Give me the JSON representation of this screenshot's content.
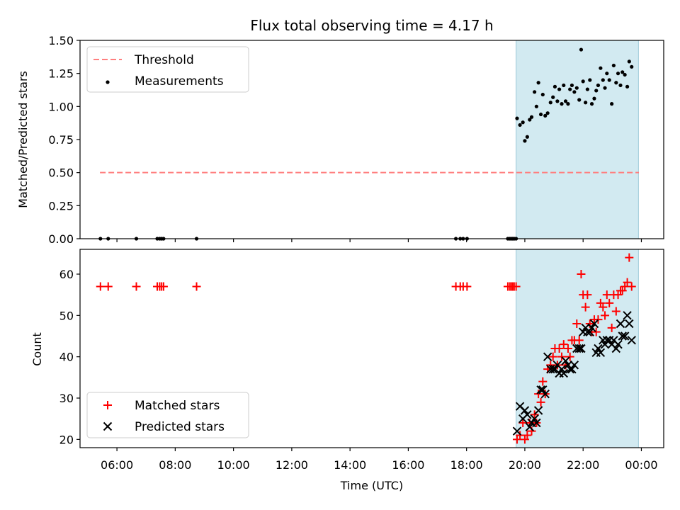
{
  "chart_data": [
    {
      "type": "scatter",
      "title": "Flux total observing time = 4.17 h",
      "xlabel": "",
      "ylabel": "Matched/Predicted stars",
      "ylim": [
        0,
        1.5
      ],
      "yticks": [
        "0.00",
        "0.25",
        "0.50",
        "0.75",
        "1.00",
        "1.25",
        "1.50"
      ],
      "legend_position": "top-left",
      "threshold": {
        "name": "Threshold",
        "value": 0.5,
        "x_range": [
          "05:25",
          "23:55"
        ],
        "color": "#ff7f7f"
      },
      "shaded_interval": {
        "start": "19:42",
        "end": "23:54",
        "color": "#add8e6"
      },
      "series": [
        {
          "name": "Measurements",
          "color": "#000000",
          "points": [
            [
              "05:26",
              0
            ],
            [
              "05:42",
              0
            ],
            [
              "06:40",
              0
            ],
            [
              "07:23",
              0
            ],
            [
              "07:28",
              0
            ],
            [
              "07:32",
              0
            ],
            [
              "07:36",
              0
            ],
            [
              "08:44",
              0
            ],
            [
              "17:38",
              0
            ],
            [
              "17:47",
              0
            ],
            [
              "17:53",
              0
            ],
            [
              "18:01",
              0
            ],
            [
              "19:25",
              0
            ],
            [
              "19:29",
              0
            ],
            [
              "19:32",
              0
            ],
            [
              "19:35",
              0
            ],
            [
              "19:38",
              0
            ],
            [
              "19:42",
              0
            ],
            [
              "19:44",
              0.91
            ],
            [
              "19:50",
              0.86
            ],
            [
              "19:56",
              0.88
            ],
            [
              "20:00",
              0.74
            ],
            [
              "20:05",
              0.77
            ],
            [
              "20:10",
              0.9
            ],
            [
              "20:14",
              0.92
            ],
            [
              "20:20",
              1.11
            ],
            [
              "20:24",
              1.0
            ],
            [
              "20:28",
              1.18
            ],
            [
              "20:33",
              0.94
            ],
            [
              "20:37",
              1.09
            ],
            [
              "20:42",
              0.93
            ],
            [
              "20:47",
              0.95
            ],
            [
              "20:53",
              1.03
            ],
            [
              "20:58",
              1.07
            ],
            [
              "21:02",
              1.15
            ],
            [
              "21:07",
              1.04
            ],
            [
              "21:11",
              1.13
            ],
            [
              "21:16",
              1.02
            ],
            [
              "21:20",
              1.16
            ],
            [
              "21:24",
              1.04
            ],
            [
              "21:29",
              1.02
            ],
            [
              "21:33",
              1.13
            ],
            [
              "21:37",
              1.16
            ],
            [
              "21:42",
              1.11
            ],
            [
              "21:47",
              1.14
            ],
            [
              "21:52",
              1.05
            ],
            [
              "21:56",
              1.43
            ],
            [
              "22:00",
              1.19
            ],
            [
              "22:05",
              1.03
            ],
            [
              "22:09",
              1.13
            ],
            [
              "22:14",
              1.2
            ],
            [
              "22:18",
              1.02
            ],
            [
              "22:23",
              1.06
            ],
            [
              "22:27",
              1.12
            ],
            [
              "22:31",
              1.16
            ],
            [
              "22:36",
              1.29
            ],
            [
              "22:41",
              1.2
            ],
            [
              "22:45",
              1.14
            ],
            [
              "22:49",
              1.25
            ],
            [
              "22:54",
              1.2
            ],
            [
              "22:59",
              1.02
            ],
            [
              "23:03",
              1.31
            ],
            [
              "23:08",
              1.18
            ],
            [
              "23:12",
              1.25
            ],
            [
              "23:17",
              1.16
            ],
            [
              "23:21",
              1.26
            ],
            [
              "23:26",
              1.24
            ],
            [
              "23:31",
              1.15
            ],
            [
              "23:35",
              1.34
            ],
            [
              "23:40",
              1.3
            ]
          ]
        }
      ]
    },
    {
      "type": "scatter",
      "xlabel": "Time (UTC)",
      "ylabel": "Count",
      "ylim": [
        18,
        66
      ],
      "yticks": [
        "20",
        "30",
        "40",
        "50",
        "60"
      ],
      "xticks": [
        "06:00",
        "08:00",
        "10:00",
        "12:00",
        "14:00",
        "16:00",
        "18:00",
        "20:00",
        "22:00",
        "00:00"
      ],
      "xlim": [
        "04:44",
        "00:46"
      ],
      "legend_position": "bottom-left",
      "shaded_interval": {
        "start": "19:42",
        "end": "23:54",
        "color": "#add8e6"
      },
      "series": [
        {
          "name": "Matched stars",
          "marker": "+",
          "color": "#ff0000",
          "points": [
            [
              "05:26",
              57
            ],
            [
              "05:42",
              57
            ],
            [
              "06:40",
              57
            ],
            [
              "07:23",
              57
            ],
            [
              "07:28",
              57
            ],
            [
              "07:32",
              57
            ],
            [
              "07:36",
              57
            ],
            [
              "08:44",
              57
            ],
            [
              "17:38",
              57
            ],
            [
              "17:47",
              57
            ],
            [
              "17:53",
              57
            ],
            [
              "18:01",
              57
            ],
            [
              "19:25",
              57
            ],
            [
              "19:29",
              57
            ],
            [
              "19:32",
              57
            ],
            [
              "19:35",
              57
            ],
            [
              "19:38",
              57
            ],
            [
              "19:42",
              57
            ],
            [
              "19:44",
              20
            ],
            [
              "19:50",
              21
            ],
            [
              "19:56",
              24
            ],
            [
              "20:00",
              20
            ],
            [
              "20:05",
              21
            ],
            [
              "20:10",
              24
            ],
            [
              "20:14",
              22
            ],
            [
              "20:20",
              26
            ],
            [
              "20:24",
              24
            ],
            [
              "20:28",
              31
            ],
            [
              "20:33",
              29
            ],
            [
              "20:37",
              34
            ],
            [
              "20:42",
              31
            ],
            [
              "20:47",
              37
            ],
            [
              "20:53",
              38
            ],
            [
              "20:58",
              40
            ],
            [
              "21:02",
              42
            ],
            [
              "21:07",
              38
            ],
            [
              "21:11",
              42
            ],
            [
              "21:16",
              40
            ],
            [
              "21:20",
              43
            ],
            [
              "21:24",
              38
            ],
            [
              "21:29",
              42
            ],
            [
              "21:33",
              40
            ],
            [
              "21:37",
              44
            ],
            [
              "21:42",
              44
            ],
            [
              "21:47",
              48
            ],
            [
              "21:52",
              44
            ],
            [
              "21:56",
              60
            ],
            [
              "22:00",
              55
            ],
            [
              "22:05",
              52
            ],
            [
              "22:09",
              55
            ],
            [
              "22:14",
              48
            ],
            [
              "22:18",
              46
            ],
            [
              "22:23",
              49
            ],
            [
              "22:27",
              46
            ],
            [
              "22:31",
              49
            ],
            [
              "22:36",
              53
            ],
            [
              "22:41",
              52
            ],
            [
              "22:45",
              50
            ],
            [
              "22:49",
              55
            ],
            [
              "22:54",
              53
            ],
            [
              "22:59",
              47
            ],
            [
              "23:03",
              55
            ],
            [
              "23:08",
              51
            ],
            [
              "23:12",
              55
            ],
            [
              "23:17",
              56
            ],
            [
              "23:21",
              56
            ],
            [
              "23:26",
              57
            ],
            [
              "23:31",
              58
            ],
            [
              "23:35",
              64
            ],
            [
              "23:40",
              57
            ]
          ]
        },
        {
          "name": "Predicted stars",
          "marker": "x",
          "color": "#000000",
          "points": [
            [
              "19:44",
              22
            ],
            [
              "19:50",
              28
            ],
            [
              "19:56",
              25
            ],
            [
              "20:00",
              27
            ],
            [
              "20:05",
              26
            ],
            [
              "20:10",
              23
            ],
            [
              "20:14",
              24
            ],
            [
              "20:20",
              25
            ],
            [
              "20:24",
              24
            ],
            [
              "20:28",
              27
            ],
            [
              "20:33",
              32
            ],
            [
              "20:37",
              32
            ],
            [
              "20:42",
              31
            ],
            [
              "20:47",
              40
            ],
            [
              "20:53",
              37
            ],
            [
              "20:58",
              37
            ],
            [
              "21:02",
              37
            ],
            [
              "21:07",
              38
            ],
            [
              "21:11",
              36
            ],
            [
              "21:16",
              37
            ],
            [
              "21:20",
              36
            ],
            [
              "21:24",
              39
            ],
            [
              "21:29",
              38
            ],
            [
              "21:33",
              37
            ],
            [
              "21:37",
              37
            ],
            [
              "21:42",
              38
            ],
            [
              "21:47",
              42
            ],
            [
              "21:52",
              42
            ],
            [
              "21:56",
              42
            ],
            [
              "22:00",
              46
            ],
            [
              "22:05",
              47
            ],
            [
              "22:09",
              46
            ],
            [
              "22:14",
              46
            ],
            [
              "22:18",
              47
            ],
            [
              "22:23",
              48
            ],
            [
              "22:27",
              41
            ],
            [
              "22:31",
              42
            ],
            [
              "22:36",
              41
            ],
            [
              "22:41",
              44
            ],
            [
              "22:45",
              43
            ],
            [
              "22:49",
              44
            ],
            [
              "22:54",
              44
            ],
            [
              "22:59",
              43
            ],
            [
              "23:03",
              44
            ],
            [
              "23:08",
              42
            ],
            [
              "23:12",
              43
            ],
            [
              "23:17",
              48
            ],
            [
              "23:21",
              45
            ],
            [
              "23:26",
              45
            ],
            [
              "23:31",
              50
            ],
            [
              "23:35",
              48
            ],
            [
              "23:40",
              44
            ]
          ]
        }
      ]
    }
  ]
}
